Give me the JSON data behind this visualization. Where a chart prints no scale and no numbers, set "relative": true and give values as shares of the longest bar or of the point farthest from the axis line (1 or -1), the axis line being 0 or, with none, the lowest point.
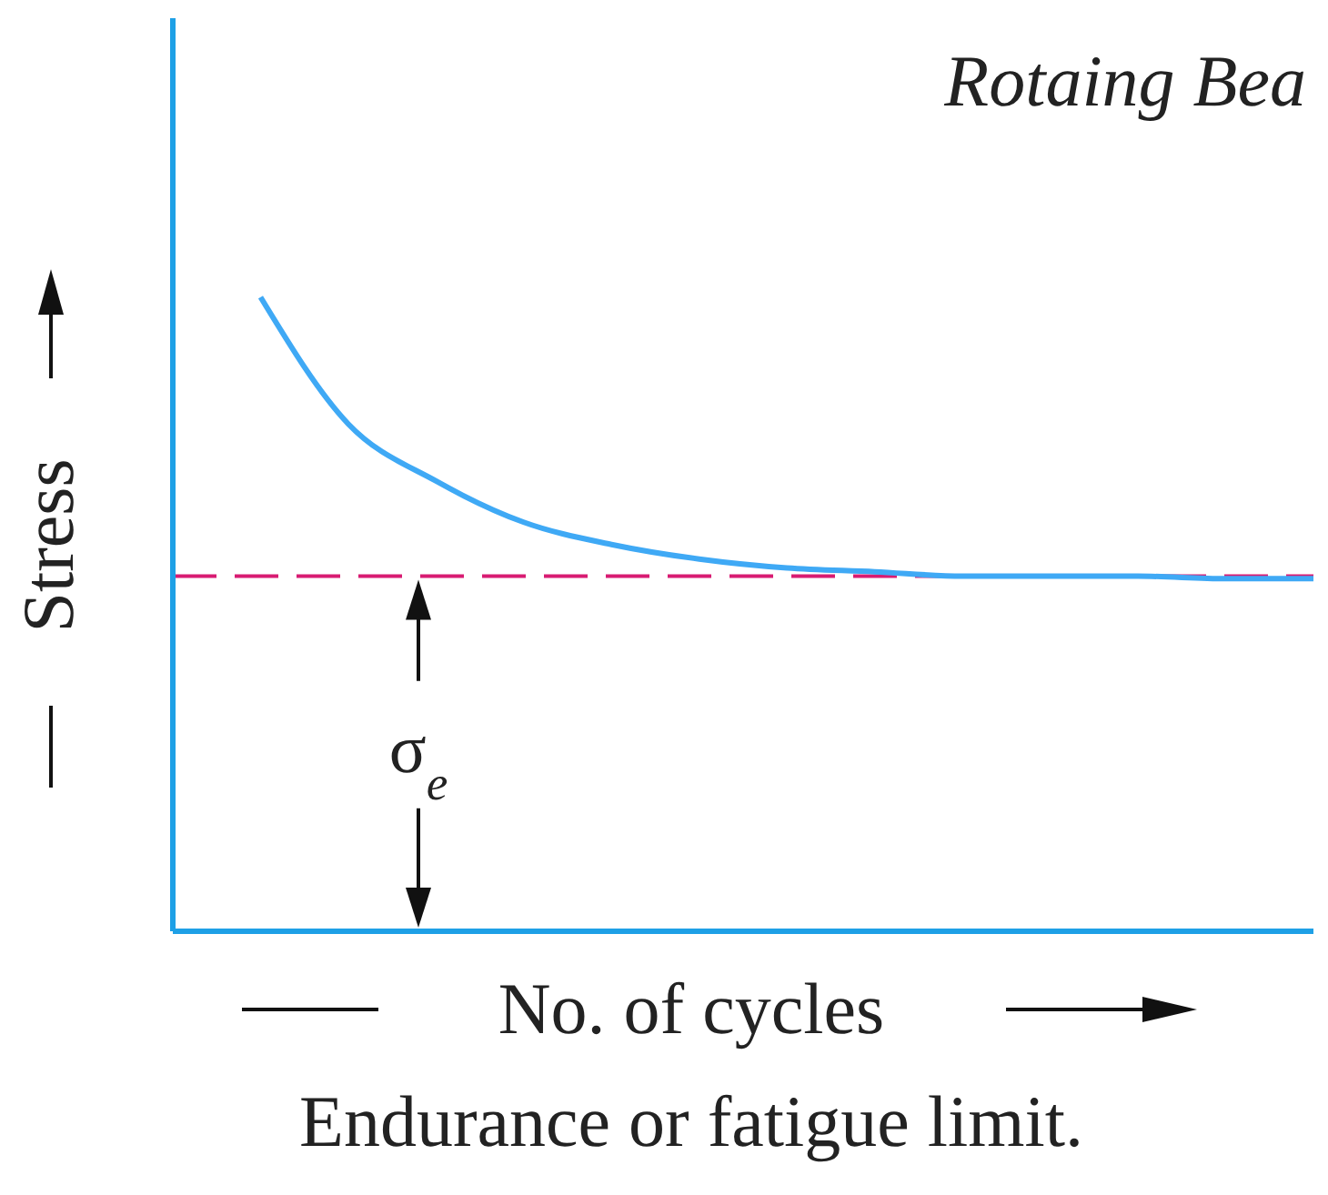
{
  "chart_data": {
    "type": "line",
    "relative": true,
    "title": "Endurance or fatigue limit.",
    "xlabel": "No. of cycles",
    "ylabel": "Stress",
    "annotations": [
      "Rotaing Bea"
    ],
    "categories": [
      null,
      null,
      null,
      null,
      null,
      null,
      null,
      null,
      null,
      null,
      null,
      null,
      null,
      null
    ],
    "series": [
      {
        "color": "#3fa9f5",
        "values": [
          null,
          1,
          0.8,
          0.71,
          0.645,
          0.61,
          0.587,
          0.573,
          0.567,
          0.56,
          0.56,
          0.56,
          0.556,
          0.556
        ]
      }
    ],
    "ref_lines": [
      {
        "axis": "y",
        "value": 0.56,
        "label": "σ$_{e}$",
        "color": "#d81b72",
        "line_style": "dashed"
      }
    ],
    "marker": "none",
    "line_style": "solid",
    "grid": false,
    "legend": false
  }
}
